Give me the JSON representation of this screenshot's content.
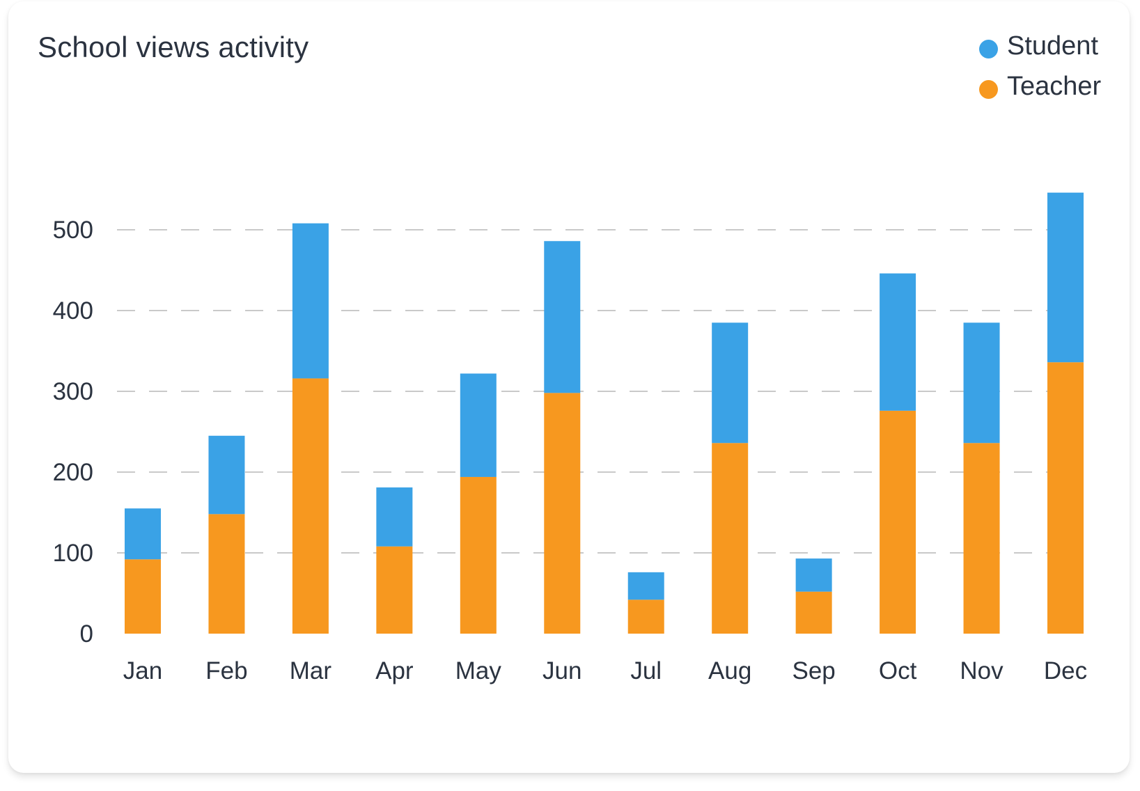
{
  "card": {
    "title": "School views activity"
  },
  "legend": [
    {
      "label": "Student",
      "color": "#3aa2e6"
    },
    {
      "label": "Teacher",
      "color": "#f7981f"
    }
  ],
  "chart_data": {
    "type": "bar",
    "stacked": true,
    "title": "School views activity",
    "categories": [
      "Jan",
      "Feb",
      "Mar",
      "Apr",
      "May",
      "Jun",
      "Jul",
      "Aug",
      "Sep",
      "Oct",
      "Nov",
      "Dec"
    ],
    "series": [
      {
        "name": "Teacher",
        "color": "#f7981f",
        "values": [
          92,
          148,
          316,
          108,
          194,
          298,
          42,
          236,
          52,
          276,
          236,
          336
        ]
      },
      {
        "name": "Student",
        "color": "#3aa2e6",
        "values": [
          63,
          97,
          192,
          73,
          128,
          188,
          34,
          149,
          41,
          170,
          149,
          210
        ]
      }
    ],
    "ylim": [
      0,
      500
    ],
    "yticks": [
      0,
      100,
      200,
      300,
      400,
      500
    ],
    "xlabel": "",
    "ylabel": "",
    "grid": "horizontal dashed",
    "legend_position": "top-right"
  }
}
